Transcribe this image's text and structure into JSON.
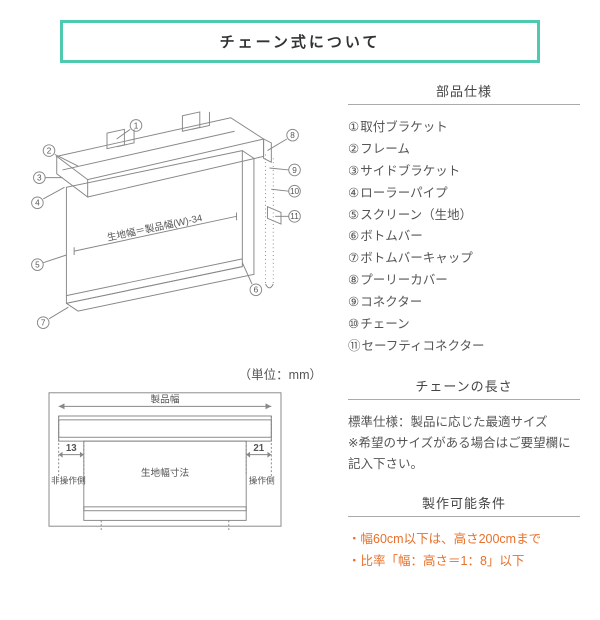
{
  "title": "チェーン式について",
  "parts_spec": {
    "heading": "部品仕様",
    "items": [
      "取付ブラケット",
      "フレーム",
      "サイドブラケット",
      "ローラーパイプ",
      "スクリーン（生地）",
      "ボトムバー",
      "ボトムバーキャップ",
      "プーリーカバー",
      "コネクター",
      "チェーン",
      "セーフティコネクター"
    ]
  },
  "chain_length": {
    "heading": "チェーンの長さ",
    "text": "標準仕様：製品に応じた最適サイズ\n※希望のサイズがある場合はご要望欄に記入下さい。"
  },
  "conditions": {
    "heading": "製作可能条件",
    "items": [
      "・幅60cm以下は、高さ200cmまで",
      "・比率「幅：高さ＝1：8」以下"
    ]
  },
  "diagram2": {
    "unit_caption": "（単位：mm）",
    "label_product_width": "製品幅",
    "label_fabric_width": "生地幅寸法",
    "margin_left": "13",
    "margin_right": "21",
    "label_left": "非操作側",
    "label_right": "操作側"
  },
  "diagram1": {
    "fabric_label": "生地幅＝製品幅(W)-34"
  },
  "circled_nums": [
    "①",
    "②",
    "③",
    "④",
    "⑤",
    "⑥",
    "⑦",
    "⑧",
    "⑨",
    "⑩",
    "⑪"
  ],
  "colors": {
    "accent": "#4fc9b0",
    "warning": "#e8702a",
    "text": "#555555"
  }
}
